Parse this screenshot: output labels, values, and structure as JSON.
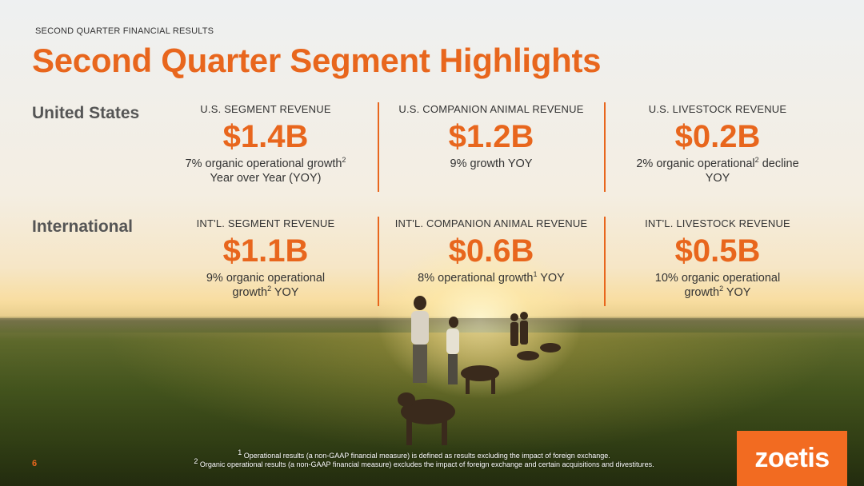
{
  "header": {
    "eyebrow": "SECOND QUARTER FINANCIAL RESULTS",
    "title": "Second Quarter Segment Highlights"
  },
  "regions": {
    "us": "United States",
    "intl": "International"
  },
  "us": [
    {
      "label": "U.S. SEGMENT REVENUE",
      "value": "$1.4B",
      "line1": "7% organic operational growth",
      "line1_sup": "2",
      "line2": "Year over Year (YOY)"
    },
    {
      "label": "U.S. COMPANION ANIMAL REVENUE",
      "value": "$1.2B",
      "line1": "9% growth YOY"
    },
    {
      "label": "U.S. LIVESTOCK REVENUE",
      "value": "$0.2B",
      "line1a": "2% organic operational",
      "line1_sup": "2",
      "line1b": " decline",
      "line2": "YOY"
    }
  ],
  "intl": [
    {
      "label": "INT'L. SEGMENT REVENUE",
      "value": "$1.1B",
      "line1": "9% organic operational",
      "line2a": "growth",
      "line2_sup": "2",
      "line2b": " YOY"
    },
    {
      "label": "INT'L. COMPANION ANIMAL REVENUE",
      "value": "$0.6B",
      "line1a": "8% operational growth",
      "line1_sup": "1",
      "line1b": " YOY"
    },
    {
      "label": "INT'L. LIVESTOCK REVENUE",
      "value": "$0.5B",
      "line1": "10% organic operational",
      "line2a": "growth",
      "line2_sup": "2",
      "line2b": " YOY"
    }
  ],
  "footnotes": {
    "fn1_num": "1",
    "fn1": " Operational results (a non-GAAP financial measure) is defined as results excluding the impact of foreign exchange.",
    "fn2_num": "2",
    "fn2": " Organic operational results (a non-GAAP financial measure) excludes the impact of foreign exchange and certain acquisitions and divestitures."
  },
  "page_number": "6",
  "logo_text": "zoetis",
  "colors": {
    "accent": "#e8661d",
    "logo_bg": "#f26b21"
  }
}
